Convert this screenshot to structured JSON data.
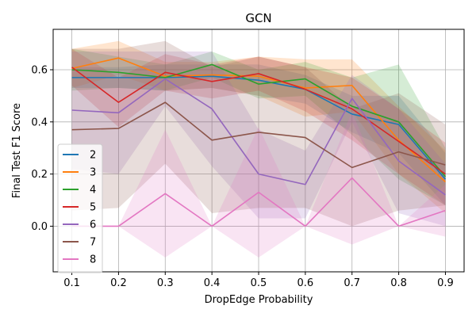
{
  "chart_data": {
    "type": "line",
    "title": "GCN",
    "xlabel": "DropEdge Probability",
    "ylabel": "Final Test F1 Score",
    "x": [
      0.1,
      0.2,
      0.3,
      0.4,
      0.5,
      0.6,
      0.7,
      0.8,
      0.9
    ],
    "x_ticks": [
      "0.1",
      "0.2",
      "0.3",
      "0.4",
      "0.5",
      "0.6",
      "0.7",
      "0.8",
      "0.9"
    ],
    "y_ticks": [
      "0.0",
      "0.2",
      "0.4",
      "0.6"
    ],
    "y_tick_values": [
      0.0,
      0.2,
      0.4,
      0.6
    ],
    "xlim": [
      0.06,
      0.94
    ],
    "ylim": [
      -0.175,
      0.755
    ],
    "grid": true,
    "legend_position": "lower-left",
    "series": [
      {
        "name": "2",
        "color": "#1f77b4",
        "values": [
          0.57,
          0.57,
          0.57,
          0.575,
          0.56,
          0.525,
          0.43,
          0.39,
          0.18
        ],
        "lower": [
          0.53,
          0.53,
          0.52,
          0.53,
          0.5,
          0.47,
          0.36,
          0.28,
          0.08
        ],
        "upper": [
          0.61,
          0.61,
          0.62,
          0.62,
          0.62,
          0.58,
          0.5,
          0.5,
          0.28
        ]
      },
      {
        "name": "3",
        "color": "#ff7f0e",
        "values": [
          0.605,
          0.645,
          0.575,
          0.58,
          0.575,
          0.53,
          0.54,
          0.33,
          0.17
        ],
        "lower": [
          0.53,
          0.58,
          0.52,
          0.53,
          0.5,
          0.42,
          0.44,
          0.2,
          0.05
        ],
        "upper": [
          0.68,
          0.71,
          0.63,
          0.63,
          0.65,
          0.64,
          0.64,
          0.46,
          0.29
        ]
      },
      {
        "name": "4",
        "color": "#2ca02c",
        "values": [
          0.6,
          0.59,
          0.57,
          0.62,
          0.545,
          0.565,
          0.46,
          0.4,
          0.19
        ],
        "lower": [
          0.52,
          0.53,
          0.52,
          0.57,
          0.49,
          0.5,
          0.35,
          0.18,
          0.08
        ],
        "upper": [
          0.68,
          0.65,
          0.62,
          0.67,
          0.6,
          0.63,
          0.57,
          0.62,
          0.3
        ]
      },
      {
        "name": "5",
        "color": "#d62728",
        "values": [
          0.61,
          0.475,
          0.59,
          0.555,
          0.585,
          0.525,
          0.45,
          0.325,
          0.2
        ],
        "lower": [
          0.54,
          0.38,
          0.52,
          0.49,
          0.52,
          0.44,
          0.33,
          0.2,
          0.08
        ],
        "upper": [
          0.68,
          0.57,
          0.66,
          0.62,
          0.65,
          0.61,
          0.57,
          0.45,
          0.32
        ]
      },
      {
        "name": "6",
        "color": "#9467bd",
        "values": [
          0.445,
          0.435,
          0.565,
          0.45,
          0.2,
          0.16,
          0.49,
          0.25,
          0.12
        ],
        "lower": [
          0.22,
          0.2,
          0.46,
          0.23,
          0.03,
          0.03,
          0.4,
          0.05,
          0.0
        ],
        "upper": [
          0.67,
          0.67,
          0.67,
          0.67,
          0.37,
          0.29,
          0.58,
          0.45,
          0.24
        ]
      },
      {
        "name": "7",
        "color": "#8c564b",
        "values": [
          0.37,
          0.375,
          0.475,
          0.33,
          0.36,
          0.34,
          0.225,
          0.285,
          0.235
        ],
        "lower": [
          0.06,
          0.07,
          0.24,
          0.05,
          0.07,
          0.07,
          0.0,
          0.06,
          0.08
        ],
        "upper": [
          0.68,
          0.68,
          0.71,
          0.61,
          0.65,
          0.61,
          0.45,
          0.51,
          0.39
        ]
      },
      {
        "name": "8",
        "color": "#e377c2",
        "values": [
          0.0,
          0.0,
          0.125,
          0.0,
          0.13,
          0.0,
          0.185,
          0.0,
          0.06
        ],
        "lower": [
          0.0,
          0.0,
          -0.12,
          0.0,
          -0.12,
          0.0,
          -0.07,
          0.0,
          -0.04
        ],
        "upper": [
          0.0,
          0.0,
          0.37,
          0.0,
          0.38,
          0.0,
          0.44,
          0.0,
          0.16
        ]
      }
    ]
  }
}
